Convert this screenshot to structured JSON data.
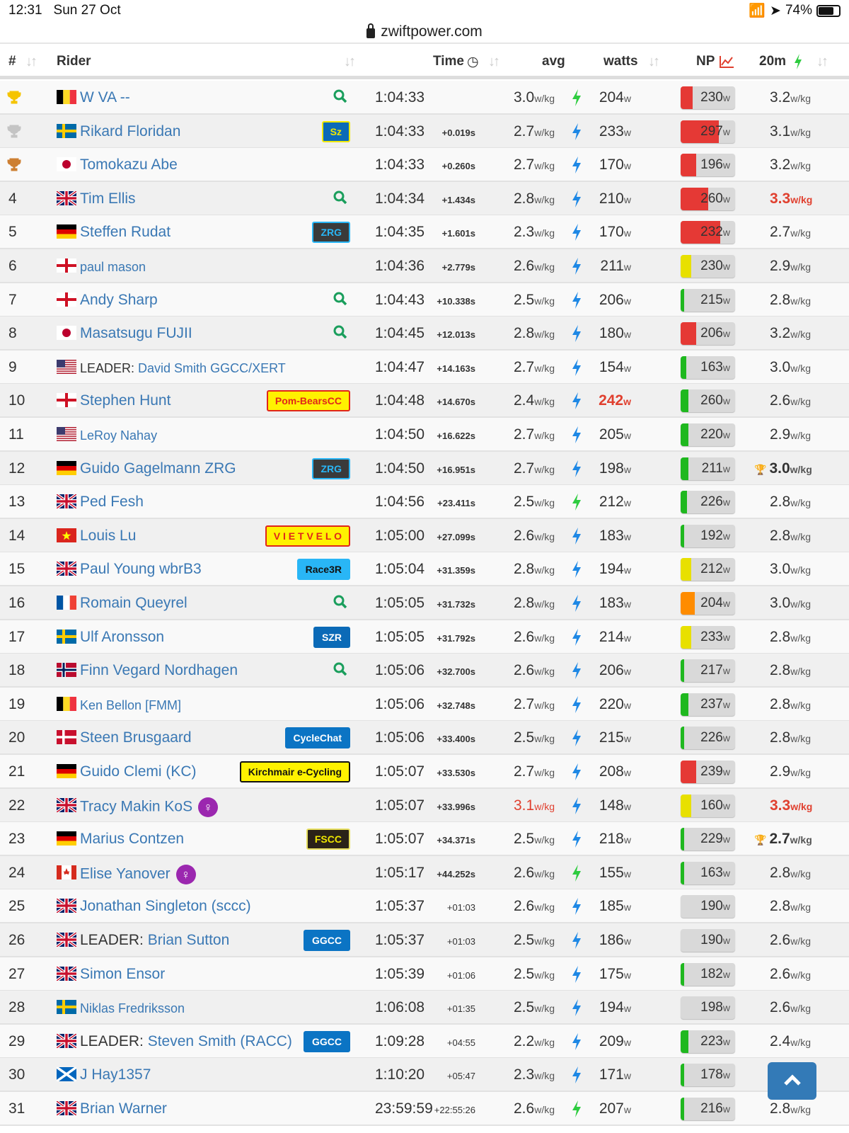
{
  "status": {
    "time": "12:31",
    "date": "Sun 27 Oct",
    "battery": "74%",
    "battery_level": 0.74
  },
  "url": "zwiftpower.com",
  "headers": {
    "pos": "#",
    "rider": "Rider",
    "time": "Time",
    "avg": "avg",
    "watts": "watts",
    "np": "NP",
    "m20": "20m"
  },
  "colors": {
    "link": "#3a78b4",
    "highlight": "#e0402f",
    "bolt_blue": "#1e88e5",
    "bolt_green": "#2ecc40",
    "np_red": "#e53935",
    "np_yellow": "#e8e000",
    "np_green": "#1fb81f",
    "np_orange": "#ff8c00"
  },
  "rows": [
    {
      "pos": "",
      "trophy": "gold",
      "flag": "be",
      "name": "W VA --",
      "search": true,
      "time": "1:04:33",
      "gap": "",
      "avg": "3.0",
      "bolt": "green",
      "watts": "204",
      "np": "230",
      "np_level": 0.22,
      "np_color": "red",
      "wkg": "3.2"
    },
    {
      "pos": "",
      "trophy": "silver",
      "flag": "se",
      "name": "Rikard Floridan",
      "badge": {
        "text": "Sz",
        "bg": "#0b6ab7",
        "fg": "#f0e800",
        "bd": "#f0e800"
      },
      "time": "1:04:33",
      "gap": "+0.019s",
      "avg": "2.7",
      "bolt": "blue",
      "watts": "233",
      "np": "297",
      "np_level": 0.7,
      "np_color": "red",
      "wkg": "3.1"
    },
    {
      "pos": "",
      "trophy": "bronze",
      "flag": "jp",
      "name": "Tomokazu Abe",
      "time": "1:04:33",
      "gap": "+0.260s",
      "avg": "2.7",
      "bolt": "blue",
      "watts": "170",
      "np": "196",
      "np_level": 0.28,
      "np_color": "red",
      "wkg": "3.2"
    },
    {
      "pos": "4",
      "flag": "gb",
      "name": "Tim Ellis",
      "search": true,
      "time": "1:04:34",
      "gap": "+1.434s",
      "avg": "2.8",
      "bolt": "blue",
      "watts": "210",
      "np": "260",
      "np_level": 0.5,
      "np_color": "red",
      "wkg": "3.3",
      "wkg_hl": true
    },
    {
      "pos": "5",
      "flag": "de",
      "name": "Steffen Rudat",
      "badge": {
        "text": "ZRG",
        "bg": "#3a3a3a",
        "fg": "#29b6f6",
        "bd": "#29b6f6"
      },
      "time": "1:04:35",
      "gap": "+1.601s",
      "avg": "2.3",
      "bolt": "blue",
      "watts": "170",
      "np": "232",
      "np_level": 0.73,
      "np_color": "red",
      "wkg": "2.7"
    },
    {
      "pos": "6",
      "flag": "en",
      "name": "paul mason",
      "small": true,
      "time": "1:04:36",
      "gap": "+2.779s",
      "avg": "2.6",
      "bolt": "blue",
      "watts": "211",
      "np": "230",
      "np_level": 0.2,
      "np_color": "yellow",
      "wkg": "2.9"
    },
    {
      "pos": "7",
      "flag": "en",
      "name": "Andy Sharp",
      "search": true,
      "time": "1:04:43",
      "gap": "+10.338s",
      "avg": "2.5",
      "bolt": "blue",
      "watts": "206",
      "np": "215",
      "np_level": 0.07,
      "np_color": "green",
      "wkg": "2.8"
    },
    {
      "pos": "8",
      "flag": "jp",
      "name": "Masatsugu FUJII",
      "search": true,
      "time": "1:04:45",
      "gap": "+12.013s",
      "avg": "2.8",
      "bolt": "blue",
      "watts": "180",
      "np": "206",
      "np_level": 0.28,
      "np_color": "red",
      "wkg": "3.2"
    },
    {
      "pos": "9",
      "flag": "us",
      "lead": "LEADER: ",
      "name": "David Smith GGCC/XERT",
      "small": true,
      "time": "1:04:47",
      "gap": "+14.163s",
      "avg": "2.7",
      "bolt": "blue",
      "watts": "154",
      "np": "163",
      "np_level": 0.1,
      "np_color": "green",
      "wkg": "3.0"
    },
    {
      "pos": "10",
      "flag": "en",
      "name": "Stephen Hunt",
      "badge": {
        "text": "Pom-BearsCC",
        "bg": "#fff200",
        "fg": "#e0261b",
        "bd": "#e0261b"
      },
      "time": "1:04:48",
      "gap": "+14.670s",
      "avg": "2.4",
      "bolt": "blue",
      "watts": "242",
      "watts_hl": true,
      "np": "260",
      "np_level": 0.14,
      "np_color": "green",
      "wkg": "2.6"
    },
    {
      "pos": "11",
      "flag": "us",
      "name": "LeRoy Nahay",
      "small": true,
      "time": "1:04:50",
      "gap": "+16.622s",
      "avg": "2.7",
      "bolt": "blue",
      "watts": "205",
      "np": "220",
      "np_level": 0.14,
      "np_color": "green",
      "wkg": "2.9"
    },
    {
      "pos": "12",
      "flag": "de",
      "name": "Guido Gagelmann ZRG",
      "badge": {
        "text": "ZRG",
        "bg": "#3a3a3a",
        "fg": "#29b6f6",
        "bd": "#29b6f6"
      },
      "time": "1:04:50",
      "gap": "+16.951s",
      "avg": "2.7",
      "bolt": "blue",
      "watts": "198",
      "np": "211",
      "np_level": 0.14,
      "np_color": "green",
      "wkg": "3.0",
      "wkg_trophy": true
    },
    {
      "pos": "13",
      "flag": "gb",
      "name": "Ped Fesh",
      "time": "1:04:56",
      "gap": "+23.411s",
      "avg": "2.5",
      "bolt": "green",
      "watts": "212",
      "np": "226",
      "np_level": 0.12,
      "np_color": "green",
      "wkg": "2.8"
    },
    {
      "pos": "14",
      "flag": "vn",
      "name": "Louis Lu",
      "badge": {
        "text": "V I E T V E L O",
        "bg": "#fff200",
        "fg": "#e0261b",
        "bd": "#e0261b"
      },
      "time": "1:05:00",
      "gap": "+27.099s",
      "avg": "2.6",
      "bolt": "blue",
      "watts": "183",
      "np": "192",
      "np_level": 0.07,
      "np_color": "green",
      "wkg": "2.8"
    },
    {
      "pos": "15",
      "flag": "gb",
      "name": "Paul Young wbrB3",
      "badge": {
        "text": "Race3R",
        "bg": "#29b6f6",
        "fg": "#111",
        "bd": "#29b6f6"
      },
      "time": "1:05:04",
      "gap": "+31.359s",
      "avg": "2.8",
      "bolt": "blue",
      "watts": "194",
      "np": "212",
      "np_level": 0.2,
      "np_color": "yellow",
      "wkg": "3.0"
    },
    {
      "pos": "16",
      "flag": "fr",
      "name": "Romain Queyrel",
      "search": true,
      "time": "1:05:05",
      "gap": "+31.732s",
      "avg": "2.8",
      "bolt": "blue",
      "watts": "183",
      "np": "204",
      "np_level": 0.26,
      "np_color": "orange",
      "wkg": "3.0"
    },
    {
      "pos": "17",
      "flag": "se",
      "name": "Ulf Aronsson",
      "badge": {
        "text": "SZR",
        "bg": "#0b6ab7",
        "fg": "#fff",
        "bd": "#0b6ab7"
      },
      "time": "1:05:05",
      "gap": "+31.792s",
      "avg": "2.6",
      "bolt": "blue",
      "watts": "214",
      "np": "233",
      "np_level": 0.2,
      "np_color": "yellow",
      "wkg": "2.8"
    },
    {
      "pos": "18",
      "flag": "no",
      "name": "Finn Vegard Nordhagen",
      "search": true,
      "time": "1:05:06",
      "gap": "+32.700s",
      "avg": "2.6",
      "bolt": "blue",
      "watts": "206",
      "np": "217",
      "np_level": 0.07,
      "np_color": "green",
      "wkg": "2.8"
    },
    {
      "pos": "19",
      "flag": "be",
      "name": "Ken Bellon [FMM]",
      "small": true,
      "time": "1:05:06",
      "gap": "+32.748s",
      "avg": "2.7",
      "bolt": "blue",
      "watts": "220",
      "np": "237",
      "np_level": 0.14,
      "np_color": "green",
      "wkg": "2.8"
    },
    {
      "pos": "20",
      "flag": "dk",
      "name": "Steen Brusgaard",
      "badge": {
        "text": "CycleChat",
        "bg": "#0b74c4",
        "fg": "#fff",
        "bd": "#0b74c4"
      },
      "time": "1:05:06",
      "gap": "+33.400s",
      "avg": "2.5",
      "bolt": "blue",
      "watts": "215",
      "np": "226",
      "np_level": 0.07,
      "np_color": "green",
      "wkg": "2.8"
    },
    {
      "pos": "21",
      "flag": "de",
      "name": "Guido Clemi (KC)",
      "badge": {
        "text": "Kirchmair e-Cycling",
        "bg": "#fff200",
        "fg": "#111",
        "bd": "#111"
      },
      "time": "1:05:07",
      "gap": "+33.530s",
      "avg": "2.7",
      "bolt": "blue",
      "watts": "208",
      "np": "239",
      "np_level": 0.28,
      "np_color": "red",
      "wkg": "2.9"
    },
    {
      "pos": "22",
      "flag": "gb",
      "name": "Tracy Makin KoS",
      "female": true,
      "time": "1:05:07",
      "gap": "+33.996s",
      "avg": "3.1",
      "avg_hl": true,
      "bolt": "blue",
      "watts": "148",
      "np": "160",
      "np_level": 0.2,
      "np_color": "yellow",
      "wkg": "3.3",
      "wkg_hl": true
    },
    {
      "pos": "23",
      "flag": "de",
      "name": "Marius Contzen",
      "badge": {
        "text": "FSCC",
        "bg": "#2a2218",
        "fg": "#f0e800",
        "bd": "#e8e060"
      },
      "time": "1:05:07",
      "gap": "+34.371s",
      "avg": "2.5",
      "bolt": "blue",
      "watts": "218",
      "np": "229",
      "np_level": 0.07,
      "np_color": "green",
      "wkg": "2.7",
      "wkg_trophy": true
    },
    {
      "pos": "24",
      "flag": "ca",
      "name": "Elise Yanover",
      "female": true,
      "time": "1:05:17",
      "gap": "+44.252s",
      "avg": "2.6",
      "bolt": "green",
      "watts": "155",
      "np": "163",
      "np_level": 0.07,
      "np_color": "green",
      "wkg": "2.8"
    },
    {
      "pos": "25",
      "flag": "gb",
      "name": "Jonathan Singleton (sccc)",
      "time": "1:05:37",
      "gap": "+01:03",
      "gap_min": true,
      "avg": "2.6",
      "bolt": "blue",
      "watts": "185",
      "np": "190",
      "np_level": 0,
      "np_color": "green",
      "wkg": "2.8"
    },
    {
      "pos": "26",
      "flag": "gb",
      "lead": "LEADER: ",
      "name": "Brian Sutton",
      "badge": {
        "text": "GGCC",
        "bg": "#0b74c4",
        "fg": "#fff",
        "bd": "#0b74c4"
      },
      "time": "1:05:37",
      "gap": "+01:03",
      "gap_min": true,
      "avg": "2.5",
      "bolt": "blue",
      "watts": "186",
      "np": "190",
      "np_level": 0,
      "np_color": "green",
      "wkg": "2.6"
    },
    {
      "pos": "27",
      "flag": "gb",
      "name": "Simon Ensor",
      "time": "1:05:39",
      "gap": "+01:06",
      "gap_min": true,
      "avg": "2.5",
      "bolt": "blue",
      "watts": "175",
      "np": "182",
      "np_level": 0.07,
      "np_color": "green",
      "wkg": "2.6"
    },
    {
      "pos": "28",
      "flag": "se",
      "name": "Niklas Fredriksson",
      "small": true,
      "time": "1:06:08",
      "gap": "+01:35",
      "gap_min": true,
      "avg": "2.5",
      "bolt": "blue",
      "watts": "194",
      "np": "198",
      "np_level": 0,
      "np_color": "green",
      "wkg": "2.6"
    },
    {
      "pos": "29",
      "flag": "gb",
      "lead": "LEADER: ",
      "name": "Steven Smith (RACC)",
      "badge": {
        "text": "GGCC",
        "bg": "#0b74c4",
        "fg": "#fff",
        "bd": "#0b74c4"
      },
      "time": "1:09:28",
      "gap": "+04:55",
      "gap_min": true,
      "avg": "2.2",
      "bolt": "blue",
      "watts": "209",
      "np": "223",
      "np_level": 0.14,
      "np_color": "green",
      "wkg": "2.4"
    },
    {
      "pos": "30",
      "flag": "sc",
      "name": "J Hay1357",
      "time": "1:10:20",
      "gap": "+05:47",
      "gap_min": true,
      "avg": "2.3",
      "bolt": "blue",
      "watts": "171",
      "np": "178",
      "np_level": 0.07,
      "np_color": "green",
      "wkg": "2.3"
    },
    {
      "pos": "31",
      "flag": "gb",
      "name": "Brian Warner",
      "time": "23:59:59",
      "gap": "+22:55:26",
      "gap_min": true,
      "avg": "2.6",
      "bolt": "green",
      "watts": "207",
      "np": "216",
      "np_level": 0.07,
      "np_color": "green",
      "wkg": "2.8"
    }
  ],
  "units": {
    "wkg": "w/kg",
    "w": "w"
  },
  "icons": {
    "trophy": "trophy-icon",
    "search": "search-icon",
    "bolt": "lightning-icon",
    "female": "female-icon",
    "sort": "sort-icon",
    "clock": "clock-icon",
    "chart": "line-chart-icon",
    "scroll_top": "chevron-up-icon"
  }
}
